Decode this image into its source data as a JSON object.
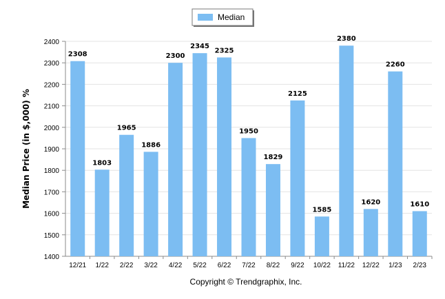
{
  "chart_data": {
    "type": "bar",
    "categories": [
      "12/21",
      "1/22",
      "2/22",
      "3/22",
      "4/22",
      "5/22",
      "6/22",
      "7/22",
      "8/22",
      "9/22",
      "10/22",
      "11/22",
      "12/22",
      "1/23",
      "2/23"
    ],
    "series": [
      {
        "name": "Median",
        "values": [
          2308,
          1803,
          1965,
          1886,
          2300,
          2345,
          2325,
          1950,
          1829,
          2125,
          1585,
          2380,
          1620,
          2260,
          1610
        ],
        "color": "#7cbdf2"
      }
    ],
    "ylabel": "Median Price (in $,000) %",
    "xlabel": "",
    "ylim": [
      1400,
      2400
    ],
    "yticks": [
      1400,
      1500,
      1600,
      1700,
      1800,
      1900,
      2000,
      2100,
      2200,
      2300,
      2400
    ],
    "grid": true,
    "legend": "top-center"
  },
  "footer": {
    "copyright": "Copyright © Trendgraphix, Inc."
  }
}
